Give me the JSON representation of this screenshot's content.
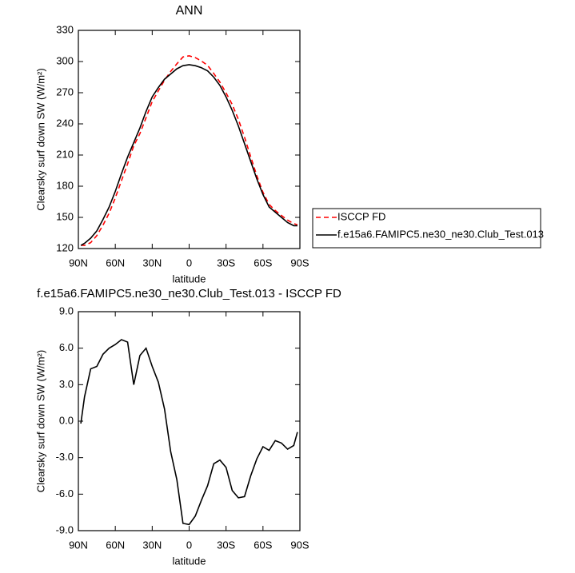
{
  "chart_data": [
    {
      "type": "line",
      "title": "ANN",
      "xlabel": "latitude",
      "ylabel": "Clearsky surf down SW (W/m²)",
      "x": [
        88,
        85,
        80,
        75,
        70,
        65,
        60,
        55,
        50,
        45,
        40,
        35,
        30,
        25,
        20,
        15,
        10,
        5,
        0,
        -5,
        -10,
        -15,
        -20,
        -25,
        -30,
        -35,
        -40,
        -45,
        -50,
        -55,
        -60,
        -65,
        -70,
        -75,
        -80,
        -85,
        -88
      ],
      "series": [
        {
          "name": "ISCCP FD",
          "color": "#ff0000",
          "line_style": "dashed",
          "values": [
            123.2,
            123,
            125.7,
            132.5,
            142.5,
            154,
            168.7,
            185.3,
            201.5,
            219,
            230.6,
            246,
            261.5,
            271.8,
            282,
            290.5,
            297.8,
            304.4,
            305.5,
            303.8,
            300.5,
            296.3,
            288.5,
            280.2,
            269.8,
            258.7,
            244.3,
            227.2,
            208.5,
            190.1,
            174.1,
            162.4,
            156.6,
            151.8,
            147.3,
            144,
            142.9
          ]
        },
        {
          "name": "f.e15a6.FAMIPC5.ne30_ne30.Club_Test.013",
          "color": "#000000",
          "line_style": "solid",
          "values": [
            123,
            125,
            130,
            137,
            148,
            160,
            175,
            192,
            208,
            222,
            236,
            252,
            266,
            275,
            283,
            288,
            293,
            296,
            297,
            296,
            294,
            291,
            285,
            277,
            266,
            253,
            238,
            221,
            204,
            187,
            172,
            160,
            155,
            150,
            145,
            142,
            142
          ]
        }
      ],
      "xlim": [
        90,
        -90
      ],
      "xticks": [
        {
          "value": 90,
          "label": "90N"
        },
        {
          "value": 60,
          "label": "60N"
        },
        {
          "value": 30,
          "label": "30N"
        },
        0,
        {
          "value": -30,
          "label": "30S"
        },
        {
          "value": -60,
          "label": "60S"
        },
        {
          "value": -90,
          "label": "90S"
        }
      ],
      "ylim": [
        120,
        330
      ],
      "yticks": [
        120,
        150,
        180,
        210,
        240,
        270,
        300,
        330
      ],
      "legend": "outside-right"
    },
    {
      "type": "line",
      "title": "f.e15a6.FAMIPC5.ne30_ne30.Club_Test.013 - ISCCP FD",
      "xlabel": "latitude",
      "ylabel": "Clearsky surf down SW (W/m²)",
      "x": [
        88,
        85,
        80,
        75,
        70,
        65,
        60,
        55,
        50,
        45,
        40,
        35,
        30,
        25,
        20,
        15,
        10,
        5,
        0,
        -5,
        -10,
        -15,
        -20,
        -25,
        -30,
        -35,
        -40,
        -45,
        -50,
        -55,
        -60,
        -65,
        -70,
        -75,
        -80,
        -85,
        -88
      ],
      "color": "#000000",
      "values": [
        -0.2,
        2,
        4.3,
        4.5,
        5.5,
        6,
        6.3,
        6.7,
        6.5,
        3,
        5.4,
        6,
        4.5,
        3.2,
        1,
        -2.5,
        -4.8,
        -8.4,
        -8.5,
        -7.8,
        -6.5,
        -5.3,
        -3.5,
        -3.2,
        -3.8,
        -5.7,
        -6.3,
        -6.2,
        -4.5,
        -3.1,
        -2.1,
        -2.4,
        -1.6,
        -1.8,
        -2.3,
        -2,
        -0.9
      ],
      "xlim": [
        90,
        -90
      ],
      "xticks": [
        {
          "value": 90,
          "label": "90N"
        },
        {
          "value": 60,
          "label": "60N"
        },
        {
          "value": 30,
          "label": "30N"
        },
        0,
        {
          "value": -30,
          "label": "30S"
        },
        {
          "value": -60,
          "label": "60S"
        },
        {
          "value": -90,
          "label": "90S"
        }
      ],
      "ylim": [
        -9,
        9
      ],
      "yticks": [
        {
          "value": -9,
          "label": "-9.0"
        },
        {
          "value": -6,
          "label": "-6.0"
        },
        {
          "value": -3,
          "label": "-3.0"
        },
        {
          "value": 0,
          "label": "0.0"
        },
        {
          "value": 3,
          "label": "3.0"
        },
        {
          "value": 6,
          "label": "6.0"
        },
        {
          "value": 9,
          "label": "9.0"
        }
      ]
    }
  ]
}
